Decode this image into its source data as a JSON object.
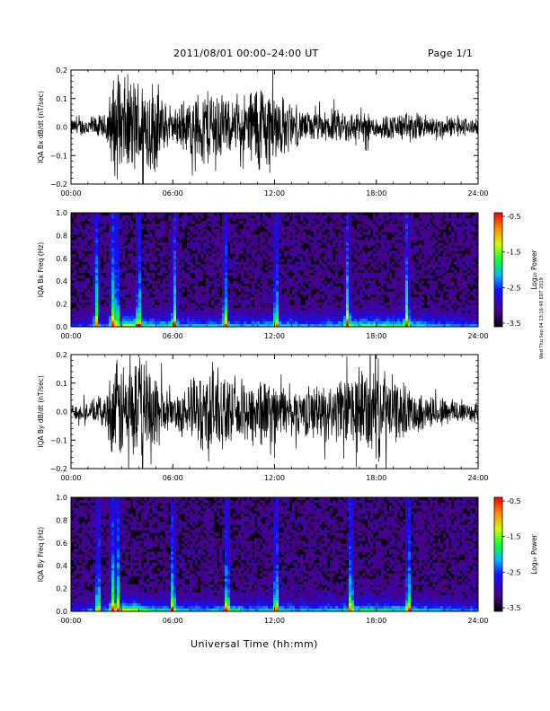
{
  "header": {
    "title": "2011/08/01   00:00–24:00 UT",
    "page": "Page 1/1"
  },
  "footer": {
    "xlabel": "Universal Time (hh:mm)",
    "stamp": "Wed Thu Sep 04 13:16:48 EDT 2019"
  },
  "colorbar_ticks": [
    "-0.5",
    "-1.5",
    "-2.5",
    "-3.5"
  ],
  "colorbar_label": "Log₁₀ Power",
  "chart_data": [
    {
      "type": "line",
      "ylabel": "IQA Bx dB/dt (nT/sec)",
      "xlim": [
        0,
        24
      ],
      "ylim": [
        -0.2,
        0.2
      ],
      "xticks": [
        "00:00",
        "06:00",
        "12:00",
        "18:00",
        "24:00"
      ],
      "yticks": [
        "0.2",
        "0.1",
        "0.0",
        "−0.1",
        "−0.2"
      ],
      "x": [
        0,
        1,
        2,
        2.5,
        3,
        3.5,
        4,
        4.5,
        5,
        5.5,
        6,
        6.5,
        7,
        7.5,
        8,
        8.5,
        9,
        9.5,
        10,
        10.5,
        11,
        11.5,
        12,
        12.5,
        13,
        13.5,
        14,
        15,
        16,
        17,
        18,
        19,
        20,
        21,
        22,
        23,
        24
      ],
      "amplitude": [
        0.03,
        0.04,
        0.05,
        0.2,
        0.2,
        0.2,
        0.2,
        0.2,
        0.19,
        0.1,
        0.06,
        0.1,
        0.11,
        0.14,
        0.16,
        0.18,
        0.12,
        0.09,
        0.12,
        0.15,
        0.2,
        0.18,
        0.16,
        0.12,
        0.09,
        0.07,
        0.06,
        0.06,
        0.07,
        0.06,
        0.05,
        0.05,
        0.06,
        0.05,
        0.04,
        0.04,
        0.03
      ]
    },
    {
      "type": "heatmap",
      "ylabel": "IQA Bx Freq (Hz)",
      "xlim": [
        0,
        24
      ],
      "ylim": [
        0,
        1.0
      ],
      "xticks": [
        "00:00",
        "06:00",
        "12:00",
        "18:00",
        "24:00"
      ],
      "yticks": [
        "1.0",
        "0.8",
        "0.6",
        "0.4",
        "0.2",
        "0.0"
      ],
      "zlim": [
        -3.5,
        -0.5
      ],
      "zlabel": "Log10 Power",
      "spike_times": [
        1.5,
        2.45,
        2.7,
        4.0,
        6.1,
        9.1,
        12.1,
        16.3,
        19.8
      ],
      "activity": [
        0.3,
        0.35,
        0.5,
        0.95,
        0.7,
        0.6,
        0.55,
        0.5,
        0.55,
        0.6,
        0.5,
        0.55,
        0.6,
        0.5,
        0.45,
        0.55,
        0.7,
        0.75,
        0.75,
        0.7,
        0.6,
        0.5,
        0.45,
        0.4
      ]
    },
    {
      "type": "line",
      "ylabel": "IQA By dB/dt (nT/sec)",
      "xlim": [
        0,
        24
      ],
      "ylim": [
        -0.2,
        0.2
      ],
      "xticks": [
        "00:00",
        "06:00",
        "12:00",
        "18:00",
        "24:00"
      ],
      "yticks": [
        "0.2",
        "0.1",
        "0.0",
        "−0.1",
        "−0.2"
      ],
      "x": [
        0,
        1,
        2,
        2.5,
        3,
        3.5,
        4,
        4.5,
        5,
        5.5,
        6,
        6.5,
        7,
        7.5,
        8,
        8.5,
        9,
        9.5,
        10,
        10.5,
        11,
        11.5,
        12,
        12.5,
        13,
        14,
        15,
        16,
        16.5,
        17,
        17.5,
        18,
        18.5,
        19,
        20,
        21,
        22,
        23,
        24
      ],
      "amplitude": [
        0.03,
        0.04,
        0.06,
        0.2,
        0.2,
        0.2,
        0.2,
        0.2,
        0.19,
        0.08,
        0.06,
        0.1,
        0.12,
        0.15,
        0.18,
        0.2,
        0.14,
        0.1,
        0.12,
        0.14,
        0.15,
        0.13,
        0.12,
        0.1,
        0.09,
        0.1,
        0.11,
        0.13,
        0.15,
        0.17,
        0.18,
        0.2,
        0.17,
        0.13,
        0.09,
        0.07,
        0.06,
        0.05,
        0.04
      ]
    },
    {
      "type": "heatmap",
      "ylabel": "IQA By Freq (Hz)",
      "xlim": [
        0,
        24
      ],
      "ylim": [
        0,
        1.0
      ],
      "xticks": [
        "00:00",
        "06:00",
        "12:00",
        "18:00",
        "24:00"
      ],
      "yticks": [
        "1.0",
        "0.8",
        "0.6",
        "0.4",
        "0.2",
        "0.0"
      ],
      "zlim": [
        -3.5,
        -0.5
      ],
      "zlabel": "Log10 Power",
      "spike_times": [
        1.6,
        2.45,
        2.75,
        6.0,
        9.2,
        12.1,
        16.5,
        19.9
      ],
      "activity": [
        0.3,
        0.4,
        0.55,
        0.95,
        0.7,
        0.6,
        0.55,
        0.5,
        0.55,
        0.65,
        0.5,
        0.55,
        0.6,
        0.5,
        0.5,
        0.55,
        0.6,
        0.65,
        0.65,
        0.6,
        0.55,
        0.5,
        0.45,
        0.4
      ]
    }
  ]
}
